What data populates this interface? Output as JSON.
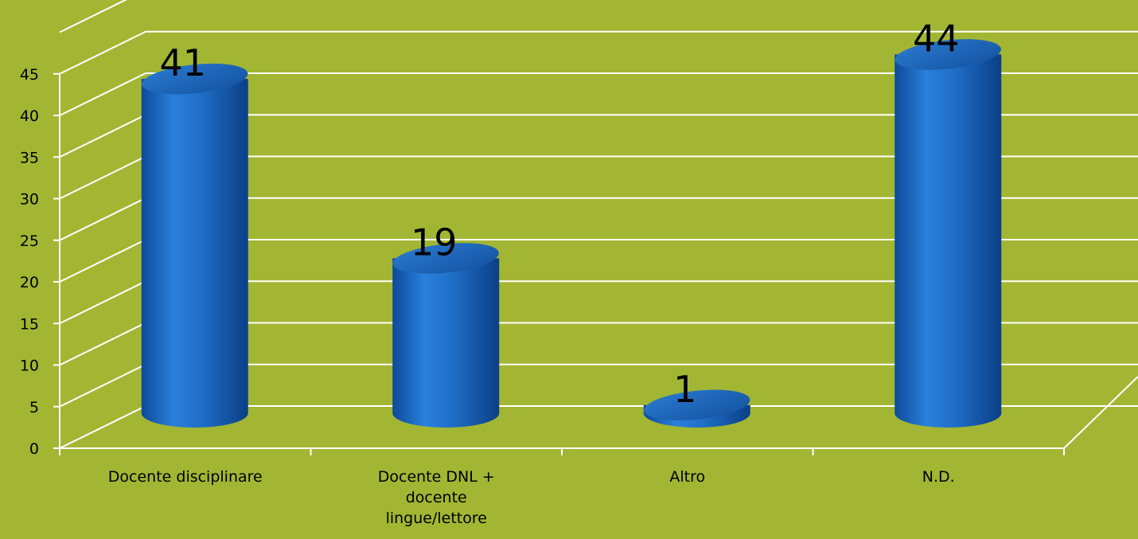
{
  "chart_data": {
    "type": "bar",
    "style": "3d-cylinder",
    "categories": [
      "Docente disciplinare",
      "Docente DNL + docente lingue/lettore",
      "Altro",
      "N.D."
    ],
    "category_label_lines": [
      [
        "Docente disciplinare"
      ],
      [
        "Docente DNL +",
        "docente",
        "lingue/lettore"
      ],
      [
        "Altro"
      ],
      [
        "N.D."
      ]
    ],
    "values": [
      41,
      19,
      1,
      44
    ],
    "data_labels": [
      "41",
      "19",
      "1",
      "44"
    ],
    "ylim": [
      0,
      45
    ],
    "yticks": [
      0,
      5,
      10,
      15,
      20,
      25,
      30,
      35,
      40,
      45
    ],
    "grid": true,
    "legend": "none",
    "title": "",
    "xlabel": "",
    "ylabel": ""
  },
  "colors": {
    "background": "#a2b633",
    "bar_body": "#1f6fc8",
    "bar_top": "#1a5fb0",
    "gridlines": "#ffffff"
  }
}
